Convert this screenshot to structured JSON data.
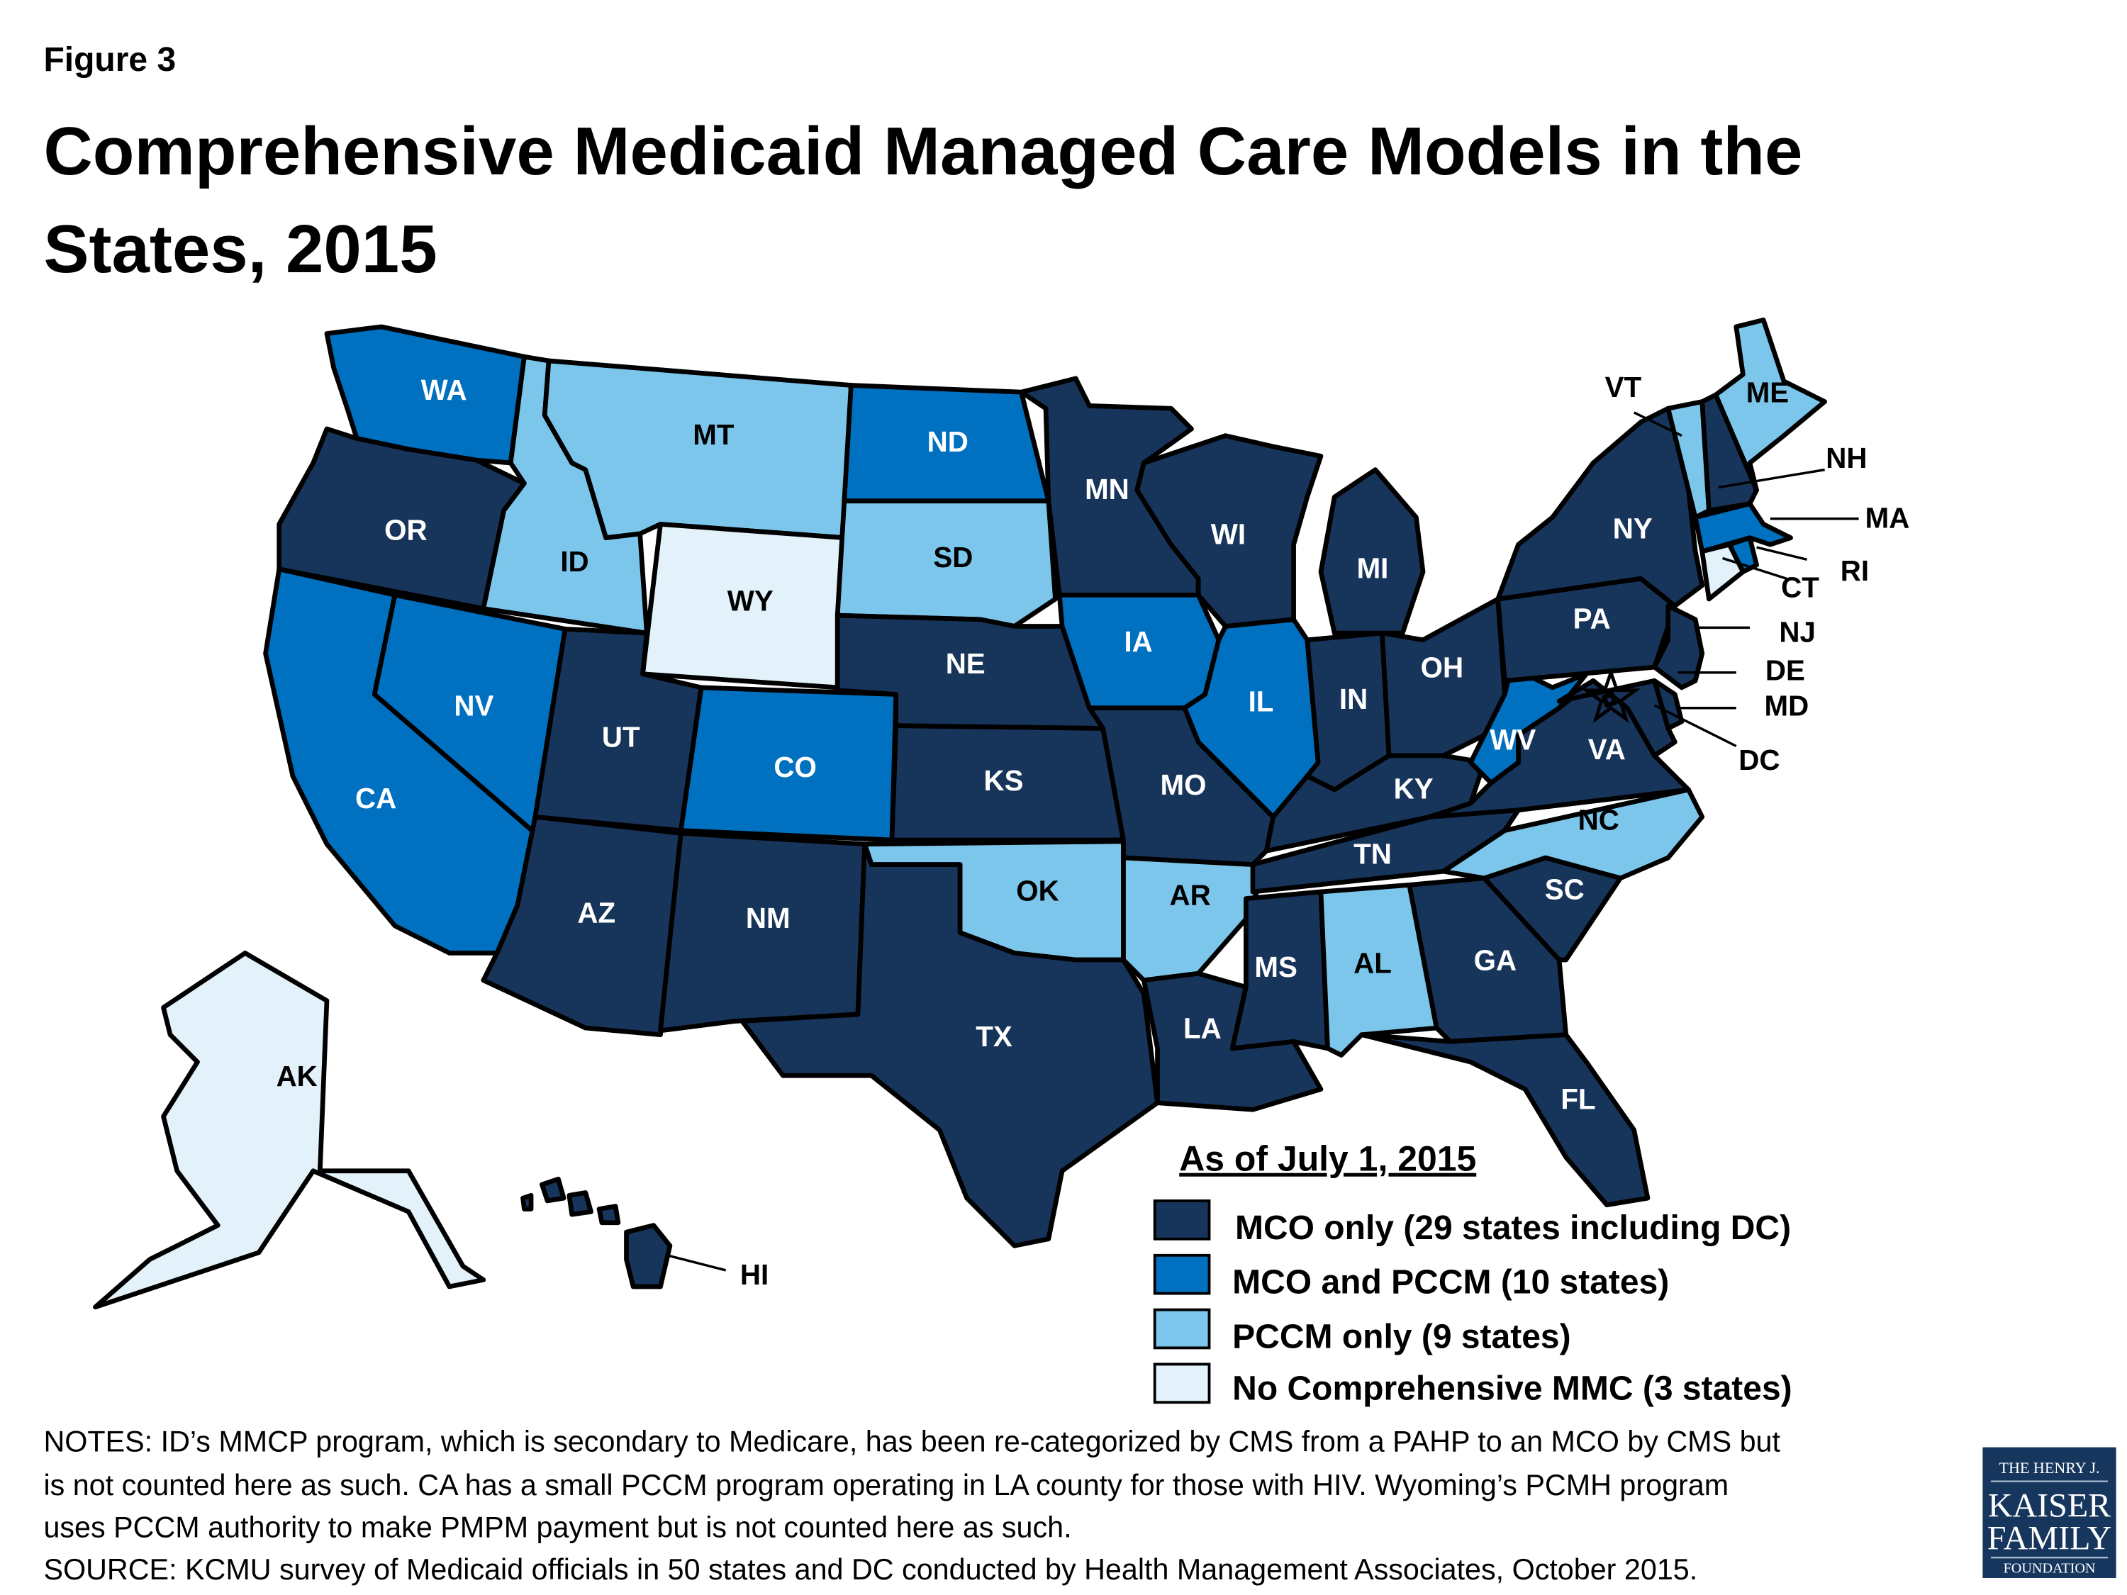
{
  "figure_label": "Figure 3",
  "title_line1": "Comprehensive Medicaid Managed Care Models in the",
  "title_line2": "States, 2015",
  "colors": {
    "mco_only": "#17345b",
    "mco_pccm": "#0070c0",
    "pccm_only": "#7cc6ec",
    "none": "#e2f1fa"
  },
  "legend": {
    "title": "As of July 1, 2015",
    "items": [
      {
        "category": "mco_only",
        "label": "MCO only (29 states including DC)"
      },
      {
        "category": "mco_pccm",
        "label": "MCO and PCCM (10 states)"
      },
      {
        "category": "pccm_only",
        "label": "PCCM only (9 states)"
      },
      {
        "category": "none",
        "label": "No Comprehensive MMC (3 states)"
      }
    ]
  },
  "states": [
    {
      "abbr": "WA",
      "category": "mco_pccm"
    },
    {
      "abbr": "OR",
      "category": "mco_only"
    },
    {
      "abbr": "CA",
      "category": "mco_pccm"
    },
    {
      "abbr": "NV",
      "category": "mco_pccm"
    },
    {
      "abbr": "ID",
      "category": "pccm_only"
    },
    {
      "abbr": "MT",
      "category": "pccm_only"
    },
    {
      "abbr": "WY",
      "category": "none"
    },
    {
      "abbr": "UT",
      "category": "mco_only"
    },
    {
      "abbr": "AZ",
      "category": "mco_only"
    },
    {
      "abbr": "CO",
      "category": "mco_pccm"
    },
    {
      "abbr": "NM",
      "category": "mco_only"
    },
    {
      "abbr": "ND",
      "category": "mco_pccm"
    },
    {
      "abbr": "SD",
      "category": "pccm_only"
    },
    {
      "abbr": "NE",
      "category": "mco_only"
    },
    {
      "abbr": "KS",
      "category": "mco_only"
    },
    {
      "abbr": "OK",
      "category": "pccm_only"
    },
    {
      "abbr": "TX",
      "category": "mco_only"
    },
    {
      "abbr": "MN",
      "category": "mco_only"
    },
    {
      "abbr": "IA",
      "category": "mco_pccm"
    },
    {
      "abbr": "MO",
      "category": "mco_only"
    },
    {
      "abbr": "AR",
      "category": "pccm_only"
    },
    {
      "abbr": "LA",
      "category": "mco_only"
    },
    {
      "abbr": "WI",
      "category": "mco_only"
    },
    {
      "abbr": "IL",
      "category": "mco_pccm"
    },
    {
      "abbr": "MI",
      "category": "mco_only"
    },
    {
      "abbr": "IN",
      "category": "mco_only"
    },
    {
      "abbr": "OH",
      "category": "mco_only"
    },
    {
      "abbr": "KY",
      "category": "mco_only"
    },
    {
      "abbr": "TN",
      "category": "mco_only"
    },
    {
      "abbr": "MS",
      "category": "mco_only"
    },
    {
      "abbr": "AL",
      "category": "pccm_only"
    },
    {
      "abbr": "GA",
      "category": "mco_only"
    },
    {
      "abbr": "FL",
      "category": "mco_only"
    },
    {
      "abbr": "SC",
      "category": "mco_only"
    },
    {
      "abbr": "NC",
      "category": "pccm_only"
    },
    {
      "abbr": "VA",
      "category": "mco_only"
    },
    {
      "abbr": "WV",
      "category": "mco_pccm"
    },
    {
      "abbr": "PA",
      "category": "mco_only"
    },
    {
      "abbr": "NY",
      "category": "mco_only"
    },
    {
      "abbr": "VT",
      "category": "pccm_only"
    },
    {
      "abbr": "NH",
      "category": "mco_only"
    },
    {
      "abbr": "ME",
      "category": "pccm_only"
    },
    {
      "abbr": "MA",
      "category": "mco_pccm"
    },
    {
      "abbr": "RI",
      "category": "mco_pccm"
    },
    {
      "abbr": "CT",
      "category": "none"
    },
    {
      "abbr": "NJ",
      "category": "mco_only"
    },
    {
      "abbr": "DE",
      "category": "mco_only"
    },
    {
      "abbr": "MD",
      "category": "mco_only"
    },
    {
      "abbr": "DC",
      "category": "mco_only"
    },
    {
      "abbr": "AK",
      "category": "none"
    },
    {
      "abbr": "HI",
      "category": "mco_only"
    }
  ],
  "notes": [
    "NOTES: ID’s MMCP program, which is secondary to Medicare, has been re-categorized by CMS from a PAHP to an MCO by CMS but",
    "is not counted here as such. CA has a small PCCM program operating in LA county for those with HIV. Wyoming’s PCMH program",
    "uses PCCM authority to make PMPM payment but is not counted here as such.",
    "SOURCE: KCMU survey of Medicaid officials in 50 states and DC conducted by Health Management Associates, October 2015."
  ],
  "logo": {
    "line1": "THE HENRY J.",
    "line2": "KAISER",
    "line3": "FAMILY",
    "line4": "FOUNDATION"
  }
}
